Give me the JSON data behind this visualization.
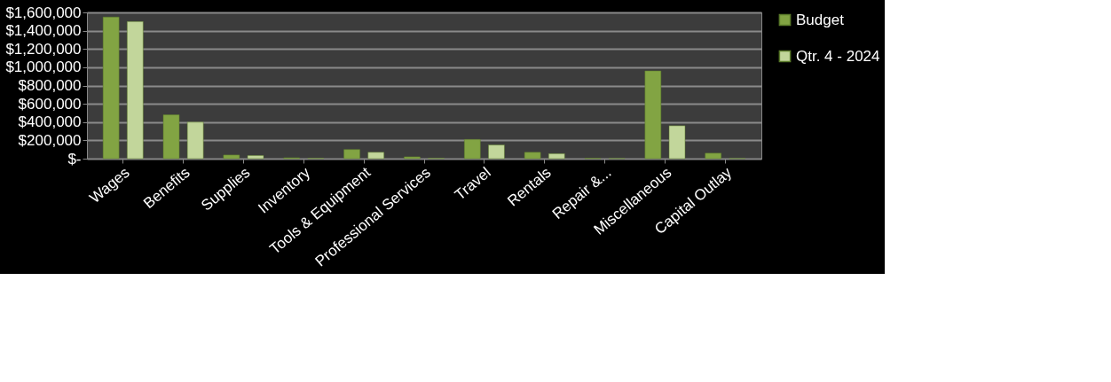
{
  "chart_data": {
    "type": "bar",
    "categories": [
      "Wages",
      "Benefits",
      "Supplies",
      "Inventory",
      "Tools & Equipment",
      "Professional Services",
      "Travel",
      "Rentals",
      "Repair &...",
      "Miscellaneous",
      "Capital Outlay"
    ],
    "series": [
      {
        "name": "Budget",
        "color": "#82a443",
        "values": [
          1550000,
          480000,
          40000,
          10000,
          100000,
          20000,
          210000,
          70000,
          5000,
          960000,
          60000
        ]
      },
      {
        "name": "Qtr. 4 - 2024",
        "color": "#c2d69b",
        "values": [
          1500000,
          400000,
          35000,
          5000,
          70000,
          5000,
          150000,
          55000,
          3000,
          360000,
          3000
        ]
      }
    ],
    "ylim": [
      0,
      1600000
    ],
    "yticks": [
      {
        "value": 0,
        "label": "$-"
      },
      {
        "value": 200000,
        "label": "$200,000"
      },
      {
        "value": 400000,
        "label": "$400,000"
      },
      {
        "value": 600000,
        "label": "$600,000"
      },
      {
        "value": 800000,
        "label": "$800,000"
      },
      {
        "value": 1000000,
        "label": "$1,000,000"
      },
      {
        "value": 1200000,
        "label": "$1,200,000"
      },
      {
        "value": 1400000,
        "label": "$1,400,000"
      },
      {
        "value": 1600000,
        "label": "$1,600,000"
      }
    ],
    "grid": "y",
    "legend": "right"
  }
}
